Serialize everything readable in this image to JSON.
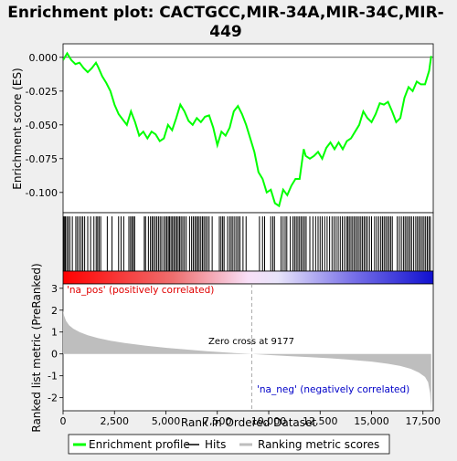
{
  "chart_data": {
    "type": "line",
    "title_lines": [
      "Enrichment plot: CACTGCC,MIR-34A,MIR-34C,MIR-",
      "449"
    ],
    "es_panel": {
      "ylabel": "Enrichment score (ES)",
      "ylim": [
        -0.115,
        0.01
      ],
      "yticks": [
        "0.000",
        "-0.025",
        "-0.050",
        "-0.075",
        "-0.100"
      ],
      "ytick_values": [
        0.0,
        -0.025,
        -0.05,
        -0.075,
        -0.1
      ],
      "series": [
        {
          "name": "Enrichment profile",
          "color": "#00ff00",
          "x": [
            0,
            200,
            400,
            600,
            800,
            1000,
            1200,
            1400,
            1600,
            1700,
            1900,
            2100,
            2300,
            2500,
            2700,
            2900,
            3100,
            3300,
            3500,
            3700,
            3900,
            4100,
            4300,
            4500,
            4700,
            4900,
            5100,
            5300,
            5500,
            5700,
            5900,
            6100,
            6300,
            6500,
            6700,
            6900,
            7100,
            7300,
            7500,
            7700,
            7900,
            8100,
            8300,
            8500,
            8700,
            8900,
            9100,
            9300,
            9500,
            9700,
            9900,
            10100,
            10300,
            10500,
            10700,
            10900,
            11100,
            11300,
            11500,
            11700,
            11800,
            12000,
            12200,
            12400,
            12600,
            12800,
            13000,
            13200,
            13400,
            13600,
            13800,
            14000,
            14200,
            14400,
            14600,
            14800,
            15000,
            15200,
            15400,
            15600,
            15800,
            16000,
            16200,
            16400,
            16600,
            16800,
            17000,
            17200,
            17400,
            17600,
            17800,
            17900
          ],
          "y": [
            -0.002,
            0.003,
            -0.002,
            -0.005,
            -0.004,
            -0.008,
            -0.011,
            -0.008,
            -0.004,
            -0.007,
            -0.014,
            -0.019,
            -0.025,
            -0.035,
            -0.042,
            -0.046,
            -0.05,
            -0.04,
            -0.048,
            -0.058,
            -0.055,
            -0.06,
            -0.055,
            -0.057,
            -0.062,
            -0.06,
            -0.05,
            -0.054,
            -0.045,
            -0.035,
            -0.04,
            -0.047,
            -0.05,
            -0.045,
            -0.048,
            -0.044,
            -0.043,
            -0.052,
            -0.065,
            -0.055,
            -0.058,
            -0.052,
            -0.04,
            -0.036,
            -0.042,
            -0.05,
            -0.06,
            -0.07,
            -0.085,
            -0.09,
            -0.1,
            -0.098,
            -0.108,
            -0.11,
            -0.098,
            -0.102,
            -0.095,
            -0.09,
            -0.09,
            -0.068,
            -0.073,
            -0.075,
            -0.073,
            -0.07,
            -0.075,
            -0.067,
            -0.063,
            -0.068,
            -0.063,
            -0.068,
            -0.062,
            -0.06,
            -0.055,
            -0.05,
            -0.04,
            -0.045,
            -0.048,
            -0.042,
            -0.034,
            -0.035,
            -0.033,
            -0.04,
            -0.048,
            -0.045,
            -0.03,
            -0.022,
            -0.025,
            -0.018,
            -0.02,
            -0.02,
            -0.01,
            0.001
          ]
        }
      ]
    },
    "hits_legend": "Hits",
    "rank_panel": {
      "ylabel": "Ranked list metric (PreRanked)",
      "xlabel": "Rank in Ordered Dataset",
      "xlim": [
        0,
        18000
      ],
      "ylim": [
        -2.6,
        3.2
      ],
      "xticks": [
        "0",
        "2,500",
        "5,000",
        "7,500",
        "10,000",
        "12,500",
        "15,000",
        "17,500"
      ],
      "xtick_values": [
        0,
        2500,
        5000,
        7500,
        10000,
        12500,
        15000,
        17500
      ],
      "yticks": [
        "3",
        "2",
        "1",
        "0",
        "-1",
        "-2"
      ],
      "ytick_values": [
        3,
        2,
        1,
        0,
        -1,
        -2
      ],
      "series_name": "Ranking metric scores",
      "series_color": "#bebebe",
      "x": [
        0,
        50,
        150,
        300,
        500,
        800,
        1200,
        1700,
        2300,
        3000,
        4000,
        5000,
        6000,
        7000,
        8000,
        9177,
        10000,
        11000,
        12000,
        13000,
        14000,
        15000,
        15800,
        16400,
        16900,
        17300,
        17600,
        17750,
        17850,
        17900
      ],
      "y": [
        2.0,
        1.75,
        1.5,
        1.3,
        1.15,
        1.0,
        0.85,
        0.72,
        0.6,
        0.5,
        0.38,
        0.28,
        0.2,
        0.12,
        0.06,
        0.0,
        -0.05,
        -0.1,
        -0.15,
        -0.2,
        -0.27,
        -0.35,
        -0.45,
        -0.55,
        -0.68,
        -0.85,
        -1.05,
        -1.3,
        -1.8,
        -2.5
      ],
      "zero_cross_label": "Zero cross at 9177",
      "zero_cross_rank": 9177,
      "pos_label": "'na_pos' (positively correlated)",
      "neg_label": "'na_neg' (negatively correlated)"
    },
    "legend": {
      "placement": "bottom",
      "items": [
        {
          "label": "Enrichment profile",
          "color": "#00ff00"
        },
        {
          "label": "Hits",
          "color": "#000000"
        },
        {
          "label": "Ranking metric scores",
          "color": "#bebebe"
        }
      ]
    },
    "hit_ranks": [
      30,
      60,
      110,
      180,
      250,
      330,
      450,
      620,
      700,
      790,
      880,
      960,
      1050,
      1200,
      1340,
      1500,
      1610,
      1680,
      1750,
      1830,
      2150,
      2380,
      2700,
      2820,
      2950,
      3200,
      3280,
      3350,
      3420,
      3480,
      3950,
      4010,
      4150,
      4250,
      4330,
      4400,
      4480,
      4560,
      4640,
      4720,
      4800,
      4900,
      4980,
      5050,
      5120,
      5180,
      5250,
      5320,
      5390,
      5460,
      5530,
      5600,
      5670,
      5740,
      5820,
      5900,
      5990,
      6150,
      6250,
      6330,
      6410,
      6480,
      6550,
      6620,
      6700,
      6780,
      6850,
      6930,
      7010,
      7100,
      7250,
      7600,
      7680,
      7760,
      7830,
      8000,
      8100,
      8180,
      8260,
      8350,
      8440,
      8520,
      8600,
      8750,
      8900,
      9550,
      9700,
      9800,
      10100,
      10200,
      10280,
      10600,
      10700,
      10800,
      10880,
      11050,
      11180,
      11260,
      11340,
      11420,
      11500,
      11580,
      11660,
      11740,
      11820,
      12000,
      12150,
      12280,
      12400,
      12500,
      12600,
      12720,
      12840,
      12960,
      13080,
      13180,
      13280,
      13380,
      13480,
      13580,
      13680,
      13780,
      13850,
      13920,
      14000,
      14080,
      14160,
      14240,
      14320,
      14400,
      14480,
      14560,
      14640,
      14720,
      14800,
      14900,
      15000,
      15150,
      15250,
      15350,
      15450,
      15530,
      15610,
      15690,
      15770,
      15850,
      15930,
      16010,
      16250,
      16350,
      16450,
      16550,
      16630,
      16710,
      16790,
      16870,
      16950,
      17050,
      17150,
      17230,
      17310,
      17390,
      17470,
      17550,
      17630,
      17710,
      17790,
      17860
    ]
  }
}
